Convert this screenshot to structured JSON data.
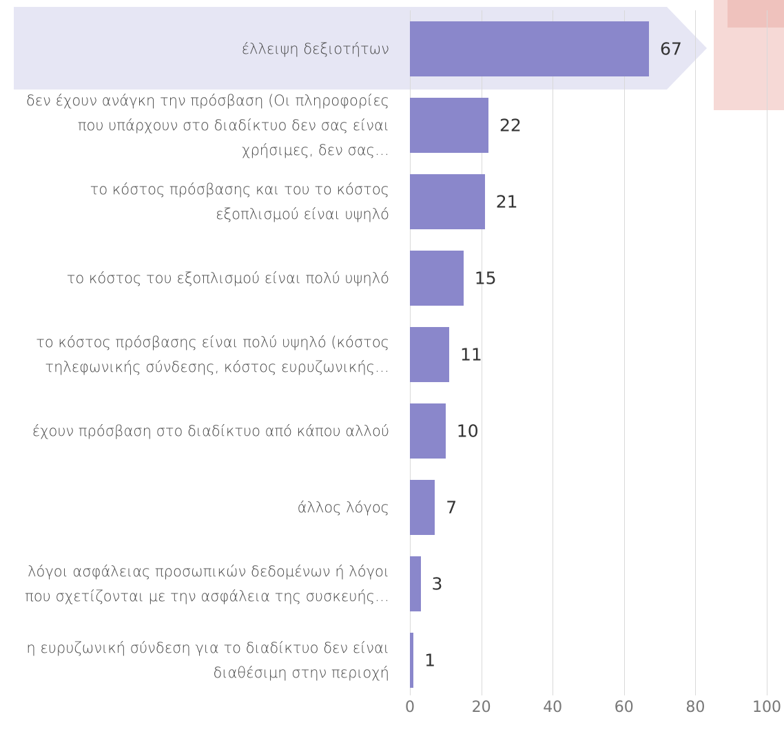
{
  "chart_data": {
    "type": "bar",
    "orientation": "horizontal",
    "categories": [
      "έλλειψη δεξιοτήτων",
      "δεν έχουν ανάγκη την πρόσβαση (Οι πληροφορίες που υπάρχουν στο διαδίκτυο δεν σας είναι χρήσιμες, δεν σας…",
      "το κόστος πρόσβασης και του το κόστος εξοπλισμού είναι υψηλό",
      "το κόστος του εξοπλισμού είναι πολύ υψηλό",
      "το κόστος πρόσβασης είναι πολύ υψηλό (κόστος τηλεφωνικής σύνδεσης, κόστος ευρυζωνικής…",
      "έχουν πρόσβαση στο διαδίκτυο από κάπου αλλού",
      "άλλος λόγος",
      "λόγοι ασφάλειας προσωπικών δεδομένων ή λόγοι που σχετίζονται με την ασφάλεια της συσκευής…",
      "η ευρυζωνική σύνδεση για το διαδίκτυο δεν είναι διαθέσιμη στην περιοχή"
    ],
    "values": [
      67,
      22,
      21,
      15,
      11,
      10,
      7,
      3,
      1
    ],
    "color": "#8a87cb",
    "xlim": [
      0,
      100
    ],
    "xticks": [
      0,
      20,
      40,
      60,
      80,
      100
    ],
    "grid": true
  }
}
